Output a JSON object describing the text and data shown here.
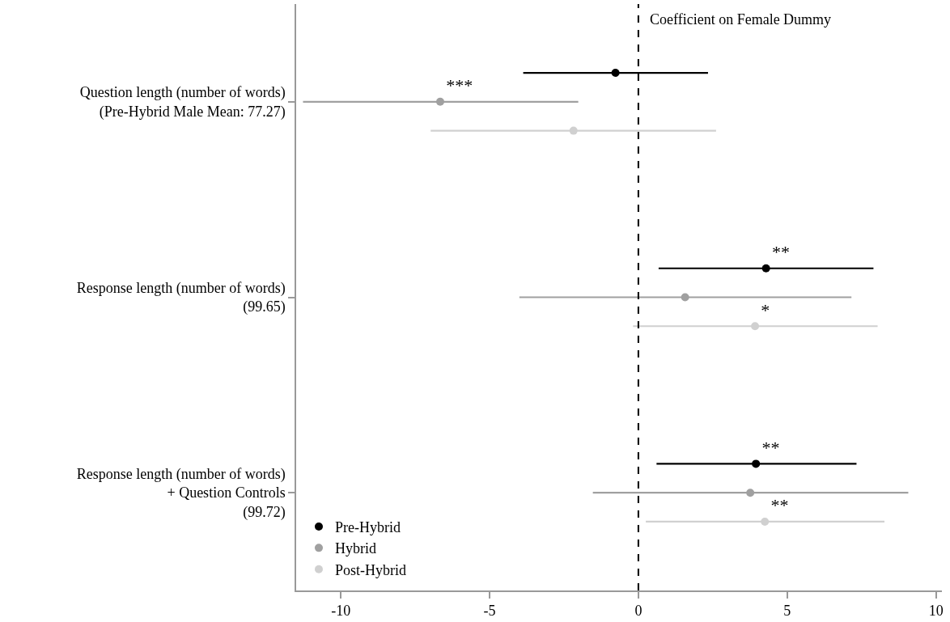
{
  "chart_data": {
    "type": "scatter",
    "orientation": "horizontal",
    "categories": [
      "Question length (number of words)\n(Pre-Hybrid Male Mean: 77.27)",
      "Response length (number of words)\n(99.65)",
      "Response length (number of words)\n+ Question Controls\n(99.72)"
    ],
    "series": [
      {
        "name": "Pre-Hybrid",
        "color": "#000000",
        "values": [
          -0.77,
          4.29,
          3.95
        ],
        "errors": [
          [
            -3.87,
            2.34
          ],
          [
            0.68,
            7.9
          ],
          [
            0.61,
            7.33
          ]
        ],
        "value_labels": [
          null,
          "**",
          "**"
        ]
      },
      {
        "name": "Hybrid",
        "color": "#a0a0a0",
        "values": [
          -6.66,
          1.57,
          3.76
        ],
        "errors": [
          [
            -11.27,
            -2.02
          ],
          [
            -4.0,
            7.16
          ],
          [
            -1.53,
            9.07
          ]
        ],
        "value_labels": [
          "***",
          null,
          null
        ]
      },
      {
        "name": "Post-Hybrid",
        "color": "#d0d0d0",
        "values": [
          -2.18,
          3.92,
          4.25
        ],
        "errors": [
          [
            -6.98,
            2.61
          ],
          [
            -0.18,
            8.04
          ],
          [
            0.25,
            8.27
          ]
        ],
        "value_labels": [
          null,
          "*",
          "**"
        ]
      }
    ],
    "xlim": [
      -11.5,
      10.2
    ],
    "xticks": [
      -10,
      -5,
      0,
      5,
      10
    ],
    "ref_lines": [
      {
        "axis": "x",
        "value": 0,
        "color": "#000000",
        "line_style": "dashed"
      }
    ],
    "annotations": [
      "Coefficient on Female Dummy"
    ],
    "legend": "bottom left",
    "marker": "circle",
    "grid": false
  }
}
